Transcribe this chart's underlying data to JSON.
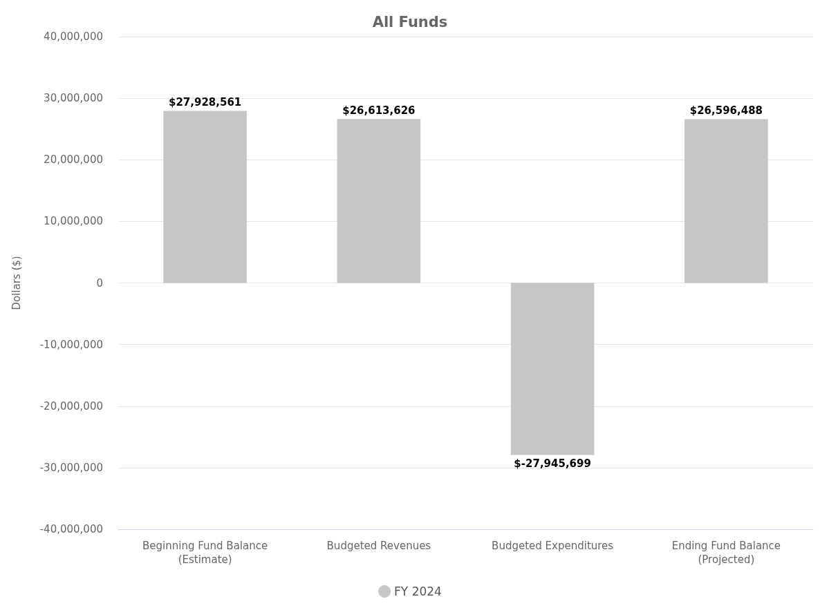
{
  "chart_data": {
    "type": "bar",
    "title": "All Funds",
    "ylabel": "Dollars ($)",
    "categories": [
      "Beginning Fund Balance\n(Estimate)",
      "Budgeted Revenues",
      "Budgeted Expenditures",
      "Ending Fund Balance\n(Projected)"
    ],
    "series": [
      {
        "name": "FY 2024",
        "color": "#c6c6c6",
        "values": [
          27928561,
          26613626,
          -27945699,
          26596488
        ],
        "value_labels": [
          "$27,928,561",
          "$26,613,626",
          "$-27,945,699",
          "$26,596,488"
        ]
      }
    ],
    "ylim": [
      -40000000,
      40000000
    ],
    "yticks": [
      {
        "value": -40000000,
        "label": "-40,000,000"
      },
      {
        "value": -30000000,
        "label": "-30,000,000"
      },
      {
        "value": -20000000,
        "label": "-20,000,000"
      },
      {
        "value": -10000000,
        "label": "-10,000,000"
      },
      0,
      {
        "value": 10000000,
        "label": "10,000,000"
      },
      {
        "value": 20000000,
        "label": "20,000,000"
      },
      {
        "value": 30000000,
        "label": "30,000,000"
      },
      {
        "value": 40000000,
        "label": "40,000,000"
      }
    ],
    "grid": "y",
    "legend": "bottom"
  }
}
